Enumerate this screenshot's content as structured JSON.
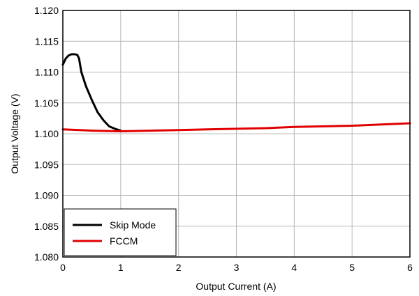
{
  "chart_data": {
    "type": "line",
    "xlabel": "Output Current  (A)",
    "ylabel": "Output Voltage (V)",
    "xlim": [
      0,
      6
    ],
    "ylim": [
      1.08,
      1.12
    ],
    "x_ticks": [
      "0",
      "1",
      "2",
      "3",
      "4",
      "5",
      "6"
    ],
    "y_ticks": [
      "1.080",
      "1.085",
      "1.090",
      "1.095",
      "1.100",
      "1.105",
      "1.110",
      "1.115",
      "1.120"
    ],
    "grid": true,
    "legend_position": "bottom-left",
    "series": [
      {
        "name": "Skip Mode",
        "color": "#000000",
        "points": [
          [
            0,
            1.1112
          ],
          [
            0.05,
            1.1122
          ],
          [
            0.1,
            1.1127
          ],
          [
            0.15,
            1.1129
          ],
          [
            0.2,
            1.1129
          ],
          [
            0.25,
            1.1128
          ],
          [
            0.28,
            1.1122
          ],
          [
            0.32,
            1.11
          ],
          [
            0.4,
            1.1077
          ],
          [
            0.5,
            1.1055
          ],
          [
            0.6,
            1.1035
          ],
          [
            0.7,
            1.1022
          ],
          [
            0.8,
            1.1012
          ],
          [
            0.9,
            1.1008
          ],
          [
            1.0,
            1.1005
          ]
        ]
      },
      {
        "name": "FCCM",
        "color": "#e00000",
        "points": [
          [
            0,
            1.1007
          ],
          [
            0.5,
            1.1005
          ],
          [
            1.0,
            1.1004
          ],
          [
            1.5,
            1.1005
          ],
          [
            2.0,
            1.1006
          ],
          [
            2.5,
            1.1007
          ],
          [
            3.0,
            1.1008
          ],
          [
            3.5,
            1.1009
          ],
          [
            4.0,
            1.1011
          ],
          [
            4.5,
            1.1012
          ],
          [
            5.0,
            1.1013
          ],
          [
            5.5,
            1.1015
          ],
          [
            6.0,
            1.1017
          ]
        ]
      }
    ]
  }
}
